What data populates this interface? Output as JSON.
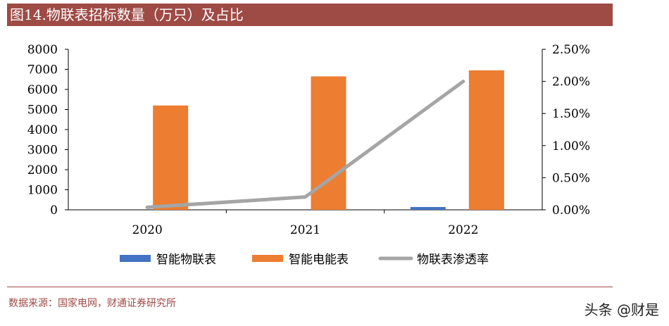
{
  "title": "图14.物联表招标数量（万只）及占比",
  "source": "数据来源：国家电网，财通证券研究所",
  "watermark": "头条 @财是",
  "chart_data": {
    "type": "bar+line",
    "categories": [
      "2020",
      "2021",
      "2022"
    ],
    "series": [
      {
        "name": "智能物联表",
        "type": "bar",
        "axis": "left",
        "color": "#4472c4",
        "values": [
          0,
          0,
          140
        ]
      },
      {
        "name": "智能电能表",
        "type": "bar",
        "axis": "left",
        "color": "#ed7d31",
        "values": [
          5200,
          6650,
          6950
        ]
      },
      {
        "name": "物联表渗透率",
        "type": "line",
        "axis": "right",
        "color": "#a5a5a5",
        "values": [
          0.0004,
          0.002,
          0.02
        ]
      }
    ],
    "ylim": [
      0,
      8000
    ],
    "yticks": [
      "0",
      "1000",
      "2000",
      "3000",
      "4000",
      "5000",
      "6000",
      "7000",
      "8000"
    ],
    "y2lim": [
      0,
      0.025
    ],
    "y2ticks": [
      "0.00%",
      "0.50%",
      "1.00%",
      "1.50%",
      "2.00%",
      "2.50%"
    ],
    "legend": "bottom",
    "grid": false
  }
}
